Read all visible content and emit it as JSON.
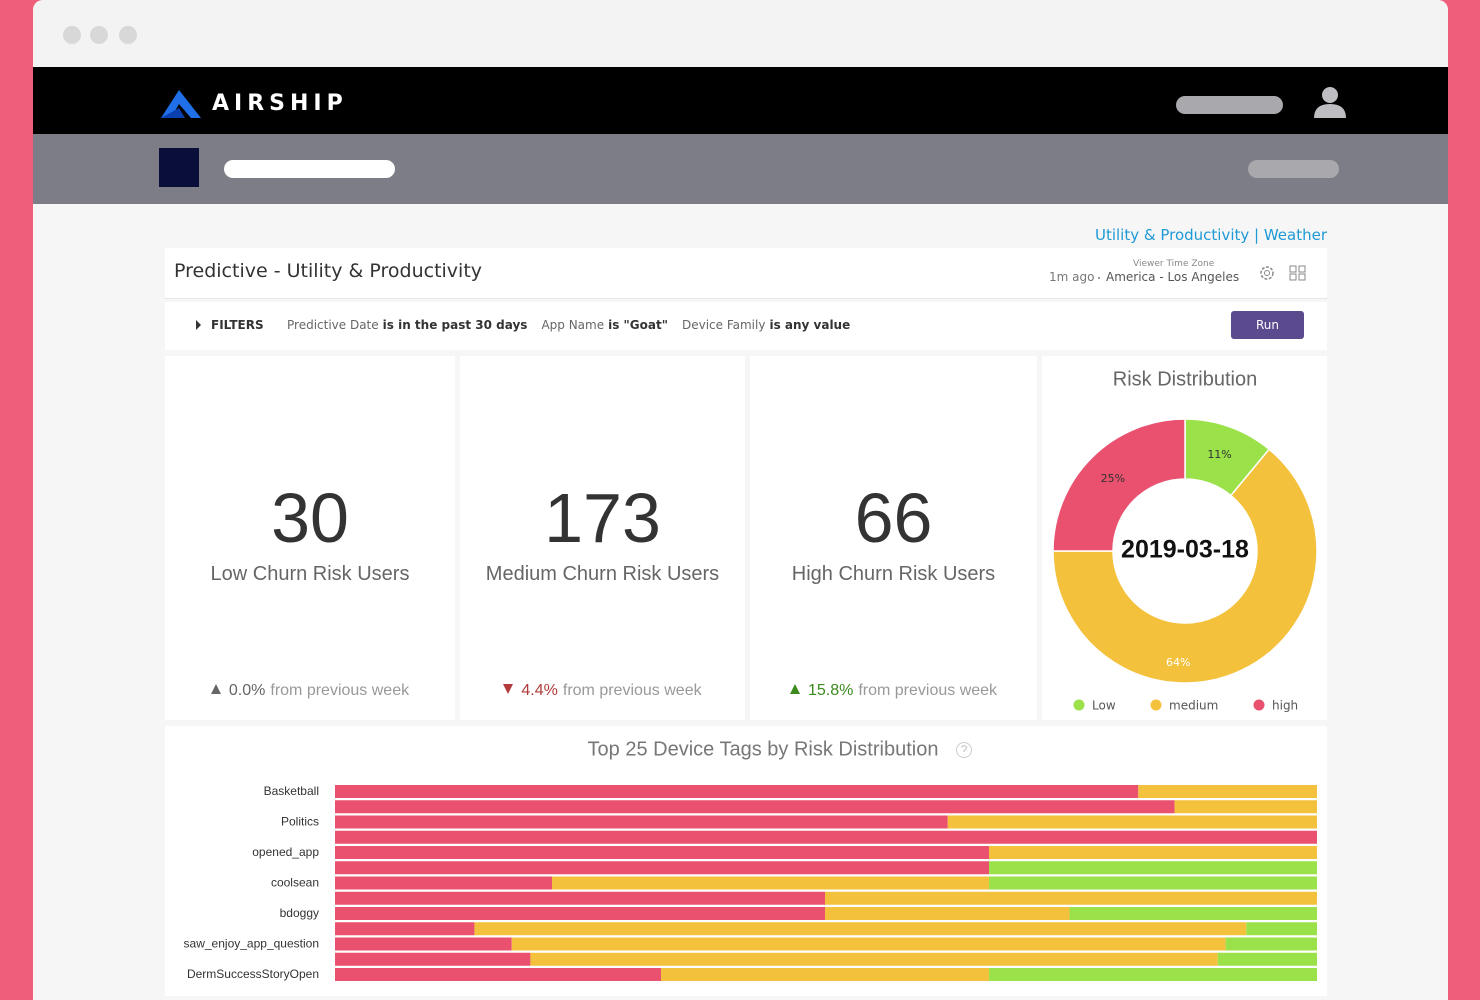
{
  "header": {
    "brand": "AIRSHIP"
  },
  "breadcrumb": "Utility & Productivity | Weather",
  "dashboard": {
    "title": "Predictive - Utility & Productivity",
    "updated": "1m ago",
    "timezone_label": "Viewer Time Zone",
    "timezone": "America - Los Angeles"
  },
  "filters": {
    "label": "FILTERS",
    "items": [
      {
        "field": "Predictive Date",
        "condition": "is in the past 30 days"
      },
      {
        "field": "App Name",
        "condition": "is \"Goat\""
      },
      {
        "field": "Device Family",
        "condition": "is any value"
      }
    ],
    "button": "Run"
  },
  "kpis": [
    {
      "value": 30,
      "label": "Low Churn Risk Users",
      "change": "0.0%",
      "note": "from previous week"
    },
    {
      "value": 173,
      "label": "Medium Churn Risk Users",
      "change": "4.4%",
      "note": "from previous week"
    },
    {
      "value": 66,
      "label": "High Churn Risk Users",
      "change": "15.8%",
      "note": "from previous week"
    }
  ],
  "chart_data": [
    {
      "type": "pie",
      "title": "Risk Distribution",
      "center_label": "2019-03-18",
      "categories": [
        "Low",
        "medium",
        "high"
      ],
      "values": [
        11,
        64,
        25
      ],
      "value_labels": [
        "11%",
        "64%",
        "25%"
      ],
      "colors": [
        "#9be24a",
        "#f4c13d",
        "#e9516f"
      ],
      "donut": true
    },
    {
      "type": "stacked-barh",
      "title": "Top 25 Device Tags by Risk Distribution",
      "categories": [
        "Basketball",
        null,
        "Politics",
        null,
        "opened_app",
        null,
        "coolsean",
        null,
        "bdoggy",
        null,
        "saw_enjoy_app_question",
        null,
        "DermSuccessStoryOpen"
      ],
      "xlim": [
        0,
        100
      ],
      "series": [
        {
          "color": "#e9516f",
          "values": [
            81.8,
            85.5,
            62.4,
            100,
            66.6,
            66.6,
            22.1,
            49.9,
            49.9,
            14.2,
            18.0,
            19.9,
            33.2
          ]
        },
        {
          "color": "#f4c13d",
          "values": [
            18.2,
            14.5,
            37.6,
            0,
            33.4,
            0,
            44.5,
            50.1,
            24.9,
            78.6,
            72.7,
            70.0,
            33.4
          ]
        },
        {
          "color": "#9be24a",
          "values": [
            0,
            0,
            0,
            0,
            0,
            33.4,
            33.4,
            0,
            25.2,
            7.2,
            9.3,
            10.1,
            33.4
          ]
        }
      ]
    }
  ]
}
